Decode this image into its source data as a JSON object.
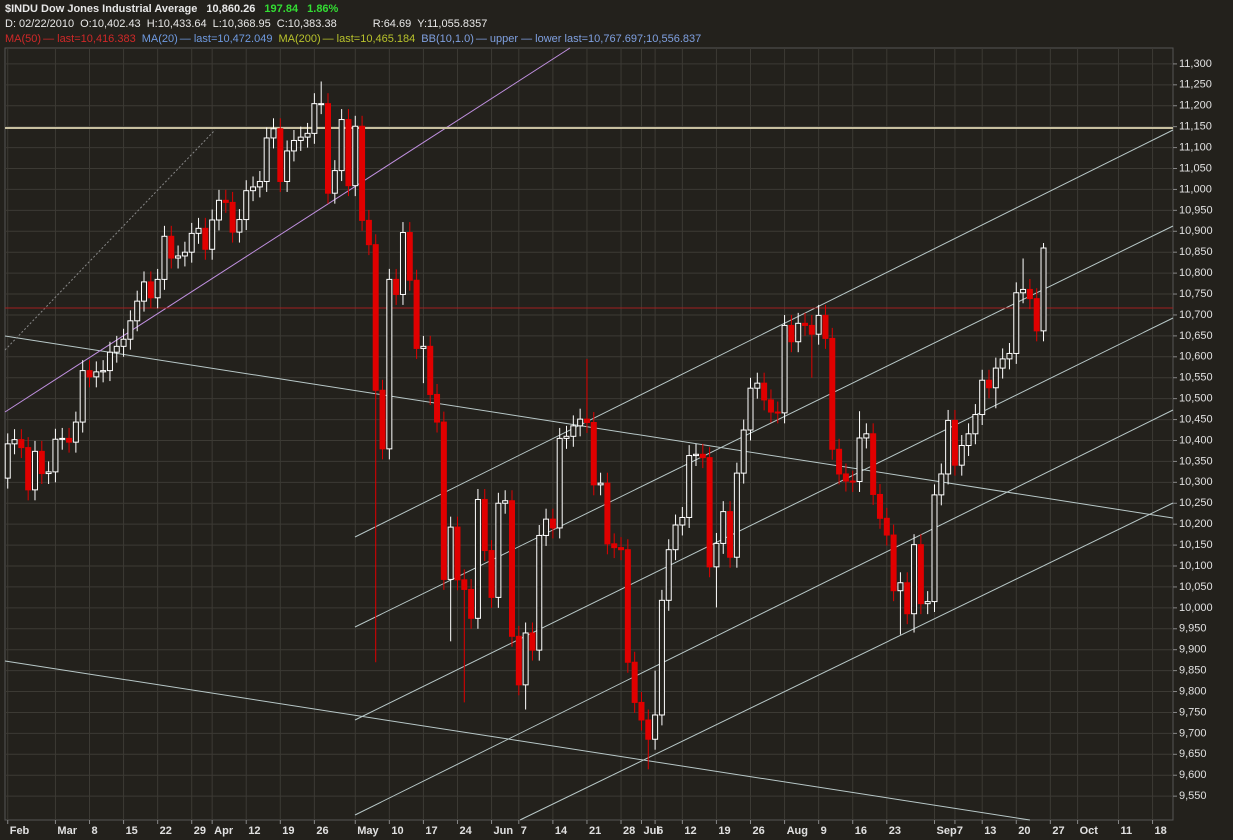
{
  "chart_data": {
    "type": "candlestick",
    "title": "$INDU Dow Jones Industrial Average",
    "last": "10,860.26",
    "change": "197.84",
    "change_pct": "1.86%",
    "change_color": "#33dd33",
    "info": [
      "D: 02/22/2010",
      "O:10,402.43",
      "H:10,433.64",
      "L:10,368.95",
      "C:10,383.38",
      "R:64.69",
      "Y:11,055.8357"
    ],
    "legend": [
      {
        "label": "MA(50)",
        "detail": "— last=10,416.383",
        "color": "#d02828"
      },
      {
        "label": "MA(20)",
        "detail": "— last=10,472.049",
        "color": "#6f9ae0"
      },
      {
        "label": "MA(200)",
        "detail": "— last=10,465.184",
        "color": "#b8c22c"
      },
      {
        "label": "BB(10,1.0)",
        "detail": "— upper — lower last=10,767.697;10,556.837",
        "color": "#7fa0e0"
      }
    ],
    "up_color": "#ffffff",
    "down_color": "#e00000",
    "open": [
      10310,
      10392,
      10402,
      10383,
      10282,
      10374,
      10321,
      10325,
      10403,
      10405,
      10396,
      10444,
      10567,
      10552,
      10564,
      10567,
      10611,
      10625,
      10642,
      10686,
      10733,
      10779,
      10741,
      10785,
      10888,
      10836,
      10841,
      10850,
      10895,
      10907,
      10857,
      10927,
      10974,
      10969,
      10898,
      10928,
      10997,
      11006,
      11019,
      11123,
      11145,
      11019,
      11092,
      11117,
      11125,
      11134,
      11205,
      11205,
      10991,
      11045,
      11167,
      11009,
      11151,
      10926,
      10868,
      10520,
      10380,
      10785,
      10749,
      10897,
      10783,
      10620,
      10625,
      10510,
      10444,
      10068,
      10193,
      10067,
      10044,
      9975,
      10259,
      10137,
      10025,
      10250,
      10256,
      9932,
      9816,
      9940,
      9899,
      10173,
      10212,
      10191,
      10405,
      10410,
      10435,
      10451,
      10443,
      10294,
      10298,
      10153,
      10144,
      10139,
      9870,
      9774,
      9732,
      9686,
      9744,
      10018,
      10139,
      10198,
      10216,
      10364,
      10367,
      10359,
      10098,
      10154,
      10230,
      10121,
      10322,
      10425,
      10525,
      10537,
      10497,
      10468,
      10466,
      10675,
      10636,
      10680,
      10675,
      10654,
      10699,
      10644,
      10379,
      10320,
      10303,
      10302,
      10406,
      10416,
      10271,
      10214,
      10174,
      10041,
      10060,
      9986,
      10151,
      10010,
      10015,
      10270,
      10320,
      10448,
      10341,
      10388,
      10416,
      10462,
      10544,
      10526,
      10573,
      10595,
      10608,
      10753,
      10761,
      10739,
      10662
    ],
    "high": [
      10417,
      10427,
      10427,
      10408,
      10399,
      10399,
      10350,
      10428,
      10430,
      10430,
      10469,
      10592,
      10592,
      10589,
      10592,
      10636,
      10650,
      10667,
      10711,
      10758,
      10804,
      10804,
      10810,
      10913,
      10913,
      10866,
      10875,
      10920,
      10932,
      10932,
      10952,
      10999,
      10999,
      10994,
      10953,
      11022,
      11031,
      11044,
      11148,
      11170,
      11170,
      11117,
      11142,
      11150,
      11159,
      11230,
      11258,
      11230,
      11070,
      11192,
      11192,
      11176,
      11176,
      10951,
      10893,
      10545,
      10810,
      10810,
      10922,
      10922,
      10808,
      10650,
      10650,
      10535,
      10469,
      10218,
      10218,
      10092,
      10069,
      10284,
      10284,
      10162,
      10275,
      10281,
      10281,
      9957,
      9965,
      9965,
      10198,
      10237,
      10237,
      10430,
      10435,
      10460,
      10476,
      10595,
      10468,
      10323,
      10323,
      10178,
      10169,
      10164,
      9895,
      9799,
      9757,
      9850,
      10043,
      10164,
      10223,
      10241,
      10389,
      10392,
      10392,
      10384,
      10179,
      10255,
      10255,
      10347,
      10450,
      10550,
      10562,
      10562,
      10522,
      10493,
      10700,
      10700,
      10705,
      10705,
      10700,
      10724,
      10724,
      10669,
      10404,
      10345,
      10328,
      10470,
      10441,
      10441,
      10296,
      10239,
      10199,
      10085,
      10085,
      10176,
      10176,
      10040,
      10295,
      10345,
      10473,
      10473,
      10413,
      10441,
      10487,
      10569,
      10569,
      10598,
      10620,
      10633,
      10778,
      10835,
      10786,
      10764,
      10872
    ],
    "low": [
      10285,
      10367,
      10358,
      10257,
      10257,
      10296,
      10296,
      10300,
      10378,
      10371,
      10371,
      10419,
      10527,
      10527,
      10539,
      10542,
      10586,
      10600,
      10617,
      10661,
      10708,
      10716,
      10716,
      10760,
      10811,
      10811,
      10816,
      10825,
      10870,
      10832,
      10832,
      10902,
      10944,
      10873,
      10873,
      10903,
      10972,
      10981,
      10994,
      11098,
      10994,
      10994,
      11067,
      11092,
      11100,
      11109,
      11180,
      10966,
      10966,
      11020,
      10984,
      10984,
      10901,
      10843,
      9870,
      10355,
      10355,
      10724,
      10724,
      10758,
      10595,
      10537,
      10485,
      10419,
      10043,
      9920,
      10042,
      9774,
      9950,
      9950,
      10112,
      10000,
      10000,
      10225,
      9907,
      9791,
      9757,
      9874,
      9874,
      10148,
      10166,
      10166,
      10380,
      10385,
      10410,
      10418,
      10269,
      10269,
      10128,
      10119,
      10114,
      9845,
      9749,
      9707,
      9614,
      9661,
      9719,
      9993,
      10114,
      10173,
      10191,
      10339,
      10334,
      10073,
      10001,
      10129,
      10096,
      10096,
      10297,
      10400,
      10500,
      10472,
      10443,
      10441,
      10441,
      10611,
      10611,
      10650,
      10550,
      10629,
      10619,
      10354,
      10295,
      10278,
      10277,
      10277,
      10381,
      10246,
      10189,
      10149,
      10016,
      9936,
      9961,
      9941,
      9985,
      9985,
      9990,
      10245,
      10295,
      10316,
      10316,
      10363,
      10391,
      10437,
      10501,
      10477,
      10548,
      10570,
      10583,
      10728,
      10714,
      10637,
      10637
    ],
    "close": [
      10392,
      10402,
      10383,
      10282,
      10374,
      10321,
      10325,
      10403,
      10405,
      10396,
      10444,
      10567,
      10552,
      10564,
      10567,
      10611,
      10625,
      10642,
      10686,
      10733,
      10779,
      10741,
      10785,
      10888,
      10836,
      10841,
      10850,
      10895,
      10907,
      10857,
      10927,
      10974,
      10969,
      10898,
      10928,
      10997,
      11006,
      11019,
      11123,
      11145,
      11019,
      11092,
      11117,
      11125,
      11134,
      11205,
      11205,
      10991,
      11045,
      11167,
      11009,
      11151,
      10926,
      10868,
      10520,
      10380,
      10785,
      10749,
      10897,
      10783,
      10620,
      10625,
      10510,
      10444,
      10068,
      10193,
      10067,
      10044,
      9975,
      10259,
      10137,
      10025,
      10250,
      10256,
      9932,
      9816,
      9940,
      9899,
      10173,
      10212,
      10191,
      10405,
      10410,
      10435,
      10451,
      10443,
      10294,
      10298,
      10153,
      10144,
      10139,
      9870,
      9774,
      9732,
      9686,
      9744,
      10018,
      10139,
      10198,
      10216,
      10364,
      10367,
      10359,
      10098,
      10154,
      10230,
      10121,
      10322,
      10425,
      10525,
      10537,
      10497,
      10468,
      10466,
      10675,
      10636,
      10680,
      10675,
      10654,
      10699,
      10644,
      10379,
      10320,
      10303,
      10302,
      10406,
      10416,
      10271,
      10214,
      10174,
      10041,
      10060,
      9986,
      10151,
      10010,
      10015,
      10270,
      10320,
      10448,
      10341,
      10388,
      10416,
      10462,
      10544,
      10526,
      10573,
      10595,
      10608,
      10753,
      10761,
      10739,
      10662,
      10860
    ],
    "xlim": [
      -0.4,
      171
    ],
    "xticks": [
      {
        "value": 0,
        "label": "Feb"
      },
      {
        "value": 7,
        "label": "Mar"
      },
      {
        "value": 12,
        "label": "8"
      },
      {
        "value": 17,
        "label": "15"
      },
      {
        "value": 22,
        "label": "22"
      },
      {
        "value": 27,
        "label": "29"
      },
      {
        "value": 30,
        "label": "Apr"
      },
      {
        "value": 35,
        "label": "12"
      },
      {
        "value": 40,
        "label": "19"
      },
      {
        "value": 45,
        "label": "26"
      },
      {
        "value": 51,
        "label": "May"
      },
      {
        "value": 56,
        "label": "10"
      },
      {
        "value": 61,
        "label": "17"
      },
      {
        "value": 66,
        "label": "24"
      },
      {
        "value": 71,
        "label": "Jun"
      },
      {
        "value": 75,
        "label": "7"
      },
      {
        "value": 80,
        "label": "14"
      },
      {
        "value": 85,
        "label": "21"
      },
      {
        "value": 90,
        "label": "28"
      },
      {
        "value": 93,
        "label": "Jul"
      },
      {
        "value": 95,
        "label": "6"
      },
      {
        "value": 99,
        "label": "12"
      },
      {
        "value": 104,
        "label": "19"
      },
      {
        "value": 109,
        "label": "26"
      },
      {
        "value": 114,
        "label": "Aug"
      },
      {
        "value": 119,
        "label": "9"
      },
      {
        "value": 124,
        "label": "16"
      },
      {
        "value": 129,
        "label": "23"
      },
      {
        "value": 136,
        "label": "Sep"
      },
      {
        "value": 139,
        "label": "7"
      },
      {
        "value": 143,
        "label": "13"
      },
      {
        "value": 148,
        "label": "20"
      },
      {
        "value": 153,
        "label": "27"
      },
      {
        "value": 157,
        "label": "Oct"
      },
      {
        "value": 163,
        "label": "11"
      },
      {
        "value": 168,
        "label": "18"
      }
    ],
    "ylim": [
      9493,
      11338
    ],
    "yticks": [
      {
        "value": 9550,
        "label": "9,550"
      },
      {
        "value": 9600,
        "label": "9,600"
      },
      {
        "value": 9650,
        "label": "9,650"
      },
      {
        "value": 9700,
        "label": "9,700"
      },
      {
        "value": 9750,
        "label": "9,750"
      },
      {
        "value": 9800,
        "label": "9,800"
      },
      {
        "value": 9850,
        "label": "9,850"
      },
      {
        "value": 9900,
        "label": "9,900"
      },
      {
        "value": 9950,
        "label": "9,950"
      },
      {
        "value": 10000,
        "label": "10,000"
      },
      {
        "value": 10050,
        "label": "10,050"
      },
      {
        "value": 10100,
        "label": "10,100"
      },
      {
        "value": 10150,
        "label": "10,150"
      },
      {
        "value": 10200,
        "label": "10,200"
      },
      {
        "value": 10250,
        "label": "10,250"
      },
      {
        "value": 10300,
        "label": "10,300"
      },
      {
        "value": 10350,
        "label": "10,350"
      },
      {
        "value": 10400,
        "label": "10,400"
      },
      {
        "value": 10450,
        "label": "10,450"
      },
      {
        "value": 10500,
        "label": "10,500"
      },
      {
        "value": 10550,
        "label": "10,550"
      },
      {
        "value": 10600,
        "label": "10,600"
      },
      {
        "value": 10650,
        "label": "10,650"
      },
      {
        "value": 10700,
        "label": "10,700"
      },
      {
        "value": 10750,
        "label": "10,750"
      },
      {
        "value": 10800,
        "label": "10,800"
      },
      {
        "value": 10850,
        "label": "10,850"
      },
      {
        "value": 10900,
        "label": "10,900"
      },
      {
        "value": 10950,
        "label": "10,950"
      },
      {
        "value": 11000,
        "label": "11,000"
      },
      {
        "value": 11050,
        "label": "11,050"
      },
      {
        "value": 11100,
        "label": "11,100"
      },
      {
        "value": 11150,
        "label": "11,150"
      },
      {
        "value": 11200,
        "label": "11,200"
      },
      {
        "value": 11250,
        "label": "11,250"
      },
      {
        "value": 11300,
        "label": "11,300"
      }
    ],
    "grid": true
  }
}
